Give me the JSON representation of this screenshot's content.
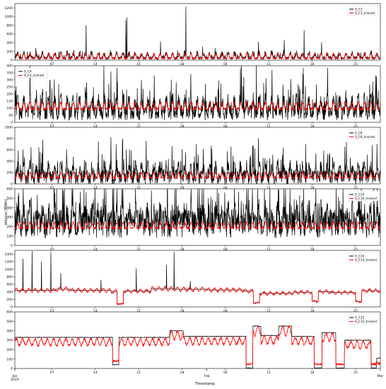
{
  "figure": {
    "ylabel": "Volume (MWh)",
    "xlabel": "Timestamp",
    "colors": {
      "actual": "#000000",
      "trained": "#ff0000"
    }
  },
  "chart_data": [
    {
      "type": "line",
      "ylim": [
        0,
        1300
      ],
      "yticks": [
        0,
        200,
        400,
        600,
        800,
        1000,
        1200
      ],
      "legend": [
        "S_C3",
        "S_C3_trained"
      ],
      "legend_position": "top-right",
      "xticks": [
        "07",
        "14",
        "21",
        "28",
        "04",
        "11",
        "18",
        "25"
      ],
      "style": "spiky",
      "profile": {
        "actual_base": 55,
        "actual_amp": 120,
        "trained_base": 40,
        "trained_amp": 110,
        "period_days": 1,
        "noise": 60
      },
      "peaks": [
        {
          "day": 11.5,
          "value": 800
        },
        {
          "day": 17.9,
          "value": 920
        },
        {
          "day": 18.1,
          "value": 980
        },
        {
          "day": 23.5,
          "value": 430
        },
        {
          "day": 27.6,
          "value": 1230
        },
        {
          "day": 43.5,
          "value": 460
        },
        {
          "day": 46.7,
          "value": 690
        },
        {
          "day": 49.5,
          "value": 410
        },
        {
          "day": 39.3,
          "value": 420
        }
      ]
    },
    {
      "type": "line",
      "ylim": [
        0,
        400
      ],
      "yticks": [
        0,
        50,
        100,
        150,
        200,
        250,
        300,
        350,
        400
      ],
      "legend": [
        "S_C4",
        "S_C4_trained"
      ],
      "legend_position": "top-left",
      "xticks": [
        "07",
        "14",
        "21",
        "28",
        "04",
        "11",
        "18",
        "25"
      ],
      "style": "noisy",
      "profile": {
        "actual_base": 70,
        "actual_amp": 90,
        "trained_base": 95,
        "trained_amp": 45,
        "period_days": 1,
        "noise": 110
      },
      "peaks": [
        {
          "day": 15.5,
          "value": 360
        },
        {
          "day": 36.6,
          "value": 400
        },
        {
          "day": 39.0,
          "value": 410
        },
        {
          "day": 41.5,
          "value": 370
        },
        {
          "day": 46.5,
          "value": 340
        },
        {
          "day": 50.5,
          "value": 385
        }
      ]
    },
    {
      "type": "line",
      "ylim": [
        0,
        1000
      ],
      "yticks": [
        0,
        200,
        400,
        600,
        800,
        1000
      ],
      "legend": [
        "S_C8",
        "S_C8_trained"
      ],
      "legend_position": "top-right",
      "xticks": [
        "07",
        "14",
        "21",
        "28",
        "04",
        "11",
        "18",
        "25"
      ],
      "style": "noisy",
      "profile": {
        "actual_base": 120,
        "actual_amp": 180,
        "trained_base": 110,
        "trained_amp": 90,
        "period_days": 1,
        "noise": 260
      },
      "peaks": [
        {
          "day": 29.3,
          "value": 700
        },
        {
          "day": 31.8,
          "value": 620
        },
        {
          "day": 18.5,
          "value": 610
        },
        {
          "day": 50.5,
          "value": 530
        }
      ]
    },
    {
      "type": "line",
      "ylim": [
        0,
        600
      ],
      "yticks": [
        0,
        100,
        200,
        300,
        400,
        500,
        600
      ],
      "legend": [
        "S_C10",
        "S_C10_trained"
      ],
      "legend_position": "top-right",
      "xticks": [
        "07",
        "14",
        "21",
        "28",
        "04",
        "11",
        "18",
        "25"
      ],
      "style": "noisy",
      "profile": {
        "actual_base": 230,
        "actual_amp": 120,
        "trained_base": 185,
        "trained_amp": 60,
        "period_days": 1,
        "noise": 300
      },
      "peaks": []
    },
    {
      "type": "line",
      "ylim": [
        0,
        1500
      ],
      "yticks": [
        0,
        200,
        400,
        600,
        800,
        1000,
        1200,
        1400
      ],
      "legend": [
        "S_C14",
        "S_C14_trained"
      ],
      "legend_position": "top-right",
      "xticks": [
        "07",
        "14",
        "21",
        "28",
        "04",
        "11",
        "18",
        "25"
      ],
      "style": "step",
      "levels": [
        [
          0,
          440
        ],
        [
          6.5,
          470
        ],
        [
          9,
          440
        ],
        [
          15.5,
          410
        ],
        [
          16.5,
          80
        ],
        [
          17.5,
          420
        ],
        [
          22,
          480
        ],
        [
          26,
          470
        ],
        [
          31,
          450
        ],
        [
          37,
          420
        ],
        [
          38.5,
          110
        ],
        [
          39.5,
          360
        ],
        [
          45,
          390
        ],
        [
          48,
          150
        ],
        [
          49,
          400
        ],
        [
          51,
          380
        ],
        [
          55,
          140
        ],
        [
          56,
          430
        ],
        [
          60,
          320
        ],
        [
          61.5,
          100
        ]
      ],
      "peaks": [
        {
          "day": 1.3,
          "value": 1280
        },
        {
          "day": 2.8,
          "value": 1480
        },
        {
          "day": 4.3,
          "value": 1200
        },
        {
          "day": 5.8,
          "value": 1450
        },
        {
          "day": 7.4,
          "value": 900
        },
        {
          "day": 13.9,
          "value": 720
        },
        {
          "day": 19.6,
          "value": 1020
        },
        {
          "day": 24.5,
          "value": 1120
        },
        {
          "day": 25.7,
          "value": 1460
        },
        {
          "day": 28.3,
          "value": 690
        }
      ]
    },
    {
      "type": "line",
      "ylim": [
        0,
        600
      ],
      "yticks": [
        0,
        100,
        200,
        300,
        400,
        500,
        600
      ],
      "legend": [
        "S_C15",
        "S_C15_trained"
      ],
      "legend_position": "top-right",
      "xticks": [
        "07",
        "14",
        "21",
        "28",
        "04",
        "11",
        "18",
        "25"
      ],
      "xticks_major": [
        {
          "day": 0,
          "label": "Jan\n2019"
        },
        {
          "day": 31,
          "label": "Feb"
        },
        {
          "day": 59,
          "label": "Mar"
        }
      ],
      "style": "step",
      "levels": [
        [
          0,
          330
        ],
        [
          15.8,
          40
        ],
        [
          16.8,
          330
        ],
        [
          25,
          400
        ],
        [
          27.2,
          340
        ],
        [
          37.3,
          5
        ],
        [
          38.4,
          450
        ],
        [
          39.7,
          350
        ],
        [
          42.6,
          450
        ],
        [
          44.7,
          340
        ],
        [
          48.3,
          5
        ],
        [
          49.6,
          380
        ],
        [
          51.8,
          5
        ],
        [
          53.2,
          300
        ],
        [
          57.5,
          5
        ],
        [
          58.4,
          110
        ]
      ],
      "trained_offset": -50,
      "peaks": []
    }
  ]
}
